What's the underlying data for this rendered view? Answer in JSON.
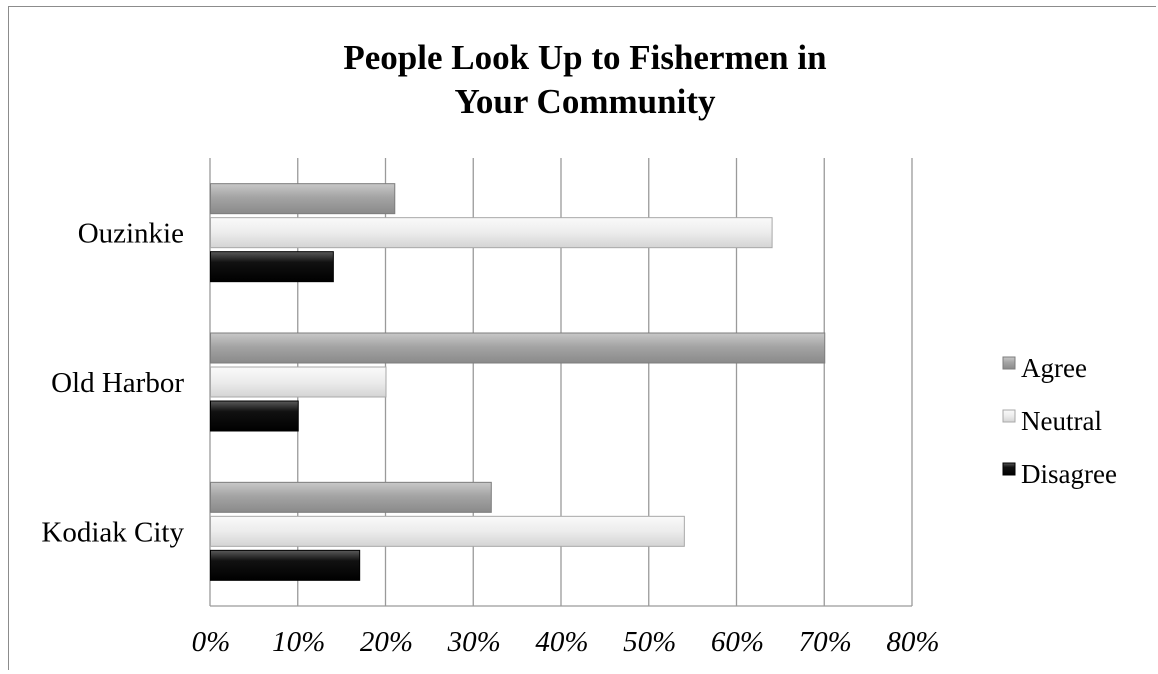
{
  "chart_data": {
    "type": "bar",
    "orientation": "horizontal",
    "title_lines": [
      "People Look Up to Fishermen in",
      "Your Community"
    ],
    "categories": [
      "Ouzinkie",
      "Old Harbor",
      "Kodiak City"
    ],
    "series": [
      {
        "name": "Agree",
        "values": [
          21,
          70,
          32
        ],
        "color": "#a9a9a9"
      },
      {
        "name": "Neutral",
        "values": [
          64,
          20,
          54
        ],
        "color": "#ececec"
      },
      {
        "name": "Disagree",
        "values": [
          14,
          10,
          17
        ],
        "color": "#111111"
      }
    ],
    "xlim": [
      0,
      80
    ],
    "xticks": [
      0,
      10,
      20,
      30,
      40,
      50,
      60,
      70,
      80
    ],
    "tick_suffix": "%",
    "grid": true,
    "legend_position": "right"
  }
}
